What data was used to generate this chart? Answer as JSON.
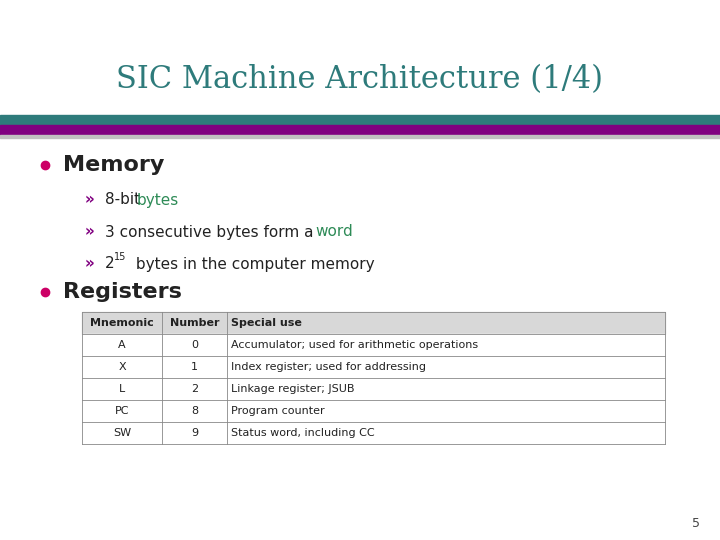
{
  "title": "SIC Machine Architecture (1/4)",
  "title_color": "#2E7B7B",
  "title_fontsize": 22,
  "bg_color": "#FFFFFF",
  "slide_number": "5",
  "stripe_teal_color": "#2E7B7B",
  "stripe_purple_color": "#800080",
  "stripe_gray_color": "#C0C0C0",
  "bullet_color": "#CC0066",
  "bullet1_text": "Memory",
  "bullet1_fontsize": 16,
  "sub_bullet_marker": "»",
  "sub_bullet_color": "#800080",
  "sub1_black": "8-bit ",
  "sub1_teal": "bytes",
  "sub2_black": "3 consecutive bytes form a ",
  "sub2_teal": "word",
  "teal_color": "#2E8B57",
  "sub3_base": "2",
  "sub3_sup": "15",
  "sub3_rest": " bytes in the computer memory",
  "bullet2_text": "Registers",
  "bullet2_fontsize": 16,
  "table_headers": [
    "Mnemonic",
    "Number",
    "Special use"
  ],
  "table_rows": [
    [
      "A",
      "0",
      "Accumulator; used for arithmetic operations"
    ],
    [
      "X",
      "1",
      "Index register; used for addressing"
    ],
    [
      "L",
      "2",
      "Linkage register; JSUB"
    ],
    [
      "PC",
      "8",
      "Program counter"
    ],
    [
      "SW",
      "9",
      "Status word, including CC"
    ]
  ],
  "table_fontsize": 8,
  "text_fontsize": 11,
  "dark_text": "#222222"
}
